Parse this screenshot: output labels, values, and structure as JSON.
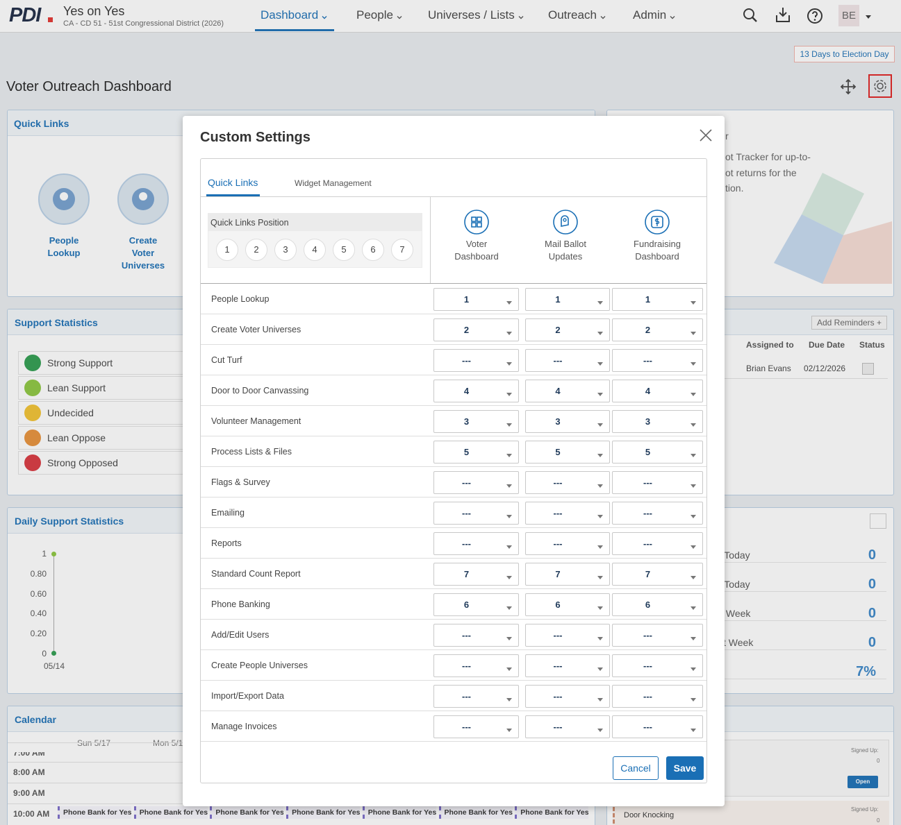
{
  "header": {
    "logo": "PDI",
    "campaign": "Yes on Yes",
    "district": "CA - CD 51 - 51st Congressional District (2026)",
    "nav": [
      "Dashboard",
      "People",
      "Universes / Lists",
      "Outreach",
      "Admin"
    ],
    "user": "BE"
  },
  "election_badge": "13 Days to Election Day",
  "page_title": "Voter Outreach Dashboard",
  "quick_links": {
    "title": "Quick Links",
    "items": [
      "People Lookup",
      "Create Voter Universes"
    ]
  },
  "support_statistics": {
    "title": "Support Statistics",
    "items": [
      "Strong Support",
      "Lean Support",
      "Undecided",
      "Lean Oppose",
      "Strong Opposed"
    ]
  },
  "daily_support_statistics": {
    "title": "Daily Support Statistics",
    "y_labels": [
      "1",
      "0.80",
      "0.60",
      "0.40",
      "0.20",
      "0"
    ],
    "x_labels": [
      "05/14"
    ]
  },
  "calendar": {
    "title": "Calendar",
    "days": [
      "Sun 5/17",
      "Mon 5/1"
    ],
    "times": [
      "7:00 AM",
      "8:00 AM",
      "9:00 AM",
      "10:00 AM"
    ],
    "events": [
      "Phone Bank for Yes",
      "Phone Bank for Yes",
      "Phone Bank for Yes",
      "Phone Bank for Yes",
      "Phone Bank for Yes",
      "Phone Bank for Yes",
      "Phone Bank for Yes"
    ]
  },
  "tracker": {
    "lines": [
      "r",
      "ot Tracker for up-to-",
      "ot returns for the",
      "tion."
    ]
  },
  "reminders": {
    "add_button": "Add Reminders +",
    "columns": [
      "Assigned to",
      "Due Date",
      "Status"
    ],
    "rows": [
      [
        "Brian Evans",
        "02/12/2026"
      ]
    ]
  },
  "stats": {
    "rows": [
      {
        "label": "r Today",
        "value": "0"
      },
      {
        "label": "r Today",
        "value": "0"
      },
      {
        "label": "s Week",
        "value": "0"
      },
      {
        "label": "xt Week",
        "value": "0"
      },
      {
        "value": "7%"
      }
    ]
  },
  "events_panel": {
    "items": [
      {
        "signed_up": "Signed Up:",
        "count": "0",
        "button": "Open"
      },
      {
        "title": "Door Knocking",
        "signed_up": "Signed Up:",
        "count": "0"
      }
    ]
  },
  "modal": {
    "title": "Custom Settings",
    "tabs": [
      "Quick Links",
      "Widget Management"
    ],
    "position_label": "Quick Links Position",
    "positions": [
      1,
      2,
      3,
      4,
      5,
      6,
      7
    ],
    "columns": [
      "Voter Dashboard",
      "Mail Ballot Updates",
      "Fundraising Dashboard"
    ],
    "rows": [
      {
        "name": "People Lookup",
        "values": [
          "1",
          "1",
          "1"
        ]
      },
      {
        "name": "Create Voter Universes",
        "values": [
          "2",
          "2",
          "2"
        ]
      },
      {
        "name": "Cut Turf",
        "values": [
          "---",
          "---",
          "---"
        ]
      },
      {
        "name": "Door to Door Canvassing",
        "values": [
          "4",
          "4",
          "4"
        ]
      },
      {
        "name": "Volunteer Management",
        "values": [
          "3",
          "3",
          "3"
        ]
      },
      {
        "name": "Process Lists & Files",
        "values": [
          "5",
          "5",
          "5"
        ]
      },
      {
        "name": "Flags & Survey",
        "values": [
          "---",
          "---",
          "---"
        ]
      },
      {
        "name": "Emailing",
        "values": [
          "---",
          "---",
          "---"
        ]
      },
      {
        "name": "Reports",
        "values": [
          "---",
          "---",
          "---"
        ]
      },
      {
        "name": "Standard Count Report",
        "values": [
          "7",
          "7",
          "7"
        ]
      },
      {
        "name": "Phone Banking",
        "values": [
          "6",
          "6",
          "6"
        ]
      },
      {
        "name": "Add/Edit Users",
        "values": [
          "---",
          "---",
          "---"
        ]
      },
      {
        "name": "Create People Universes",
        "values": [
          "---",
          "---",
          "---"
        ]
      },
      {
        "name": "Import/Export Data",
        "values": [
          "---",
          "---",
          "---"
        ]
      },
      {
        "name": "Manage Invoices",
        "values": [
          "---",
          "---",
          "---"
        ]
      }
    ],
    "buttons": {
      "cancel": "Cancel",
      "save": "Save"
    }
  }
}
